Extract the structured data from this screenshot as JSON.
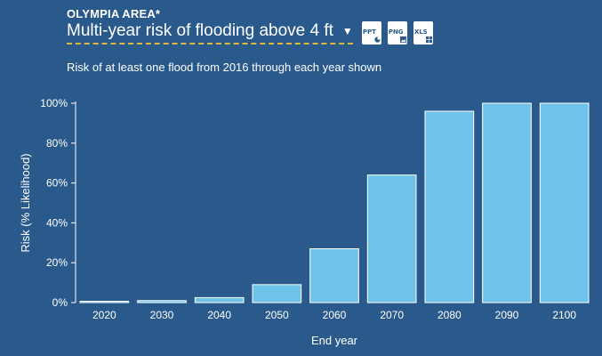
{
  "header": {
    "area": "OLYMPIA AREA*",
    "metric": "Multi-year risk of flooding above 4 ft",
    "metric_caret": "▼"
  },
  "exports": [
    {
      "label": "PPT"
    },
    {
      "label": "PNG"
    },
    {
      "label": "XLS"
    }
  ],
  "colors": {
    "background": "#2a5a8c",
    "bar_fill": "#6ec4e8",
    "bar_stroke": "#ffffff",
    "underline": "#e0b83c"
  },
  "chart_data": {
    "type": "bar",
    "title": "Risk of at least one flood from 2016 through each year shown",
    "xlabel": "End year",
    "ylabel": "Risk (% Likelihood)",
    "categories": [
      "2020",
      "2030",
      "2040",
      "2050",
      "2060",
      "2070",
      "2080",
      "2090",
      "2100"
    ],
    "values": [
      0.3,
      1,
      2.5,
      9,
      27,
      64,
      96,
      100,
      100
    ],
    "ylim": [
      0,
      100
    ],
    "yticks": [
      "0%",
      "20%",
      "40%",
      "60%",
      "80%",
      "100%"
    ],
    "grid": false
  }
}
